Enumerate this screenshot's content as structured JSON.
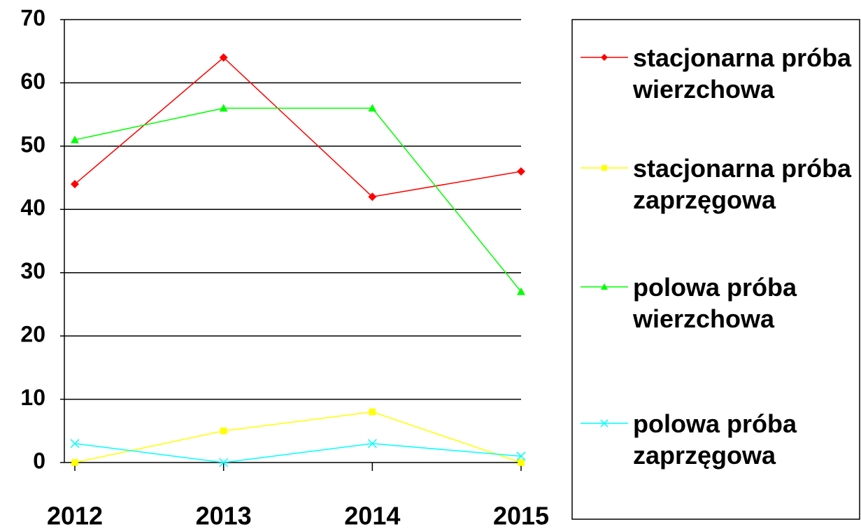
{
  "chart_data": {
    "type": "line",
    "categories": [
      "2012",
      "2013",
      "2014",
      "2015"
    ],
    "series": [
      {
        "name": "stacjonarna próba wierzchowa",
        "color": "#ff0000",
        "marker": "diamond",
        "values": [
          44,
          64,
          42,
          46
        ]
      },
      {
        "name": "stacjonarna próba zaprzęgowa",
        "color": "#ffff00",
        "marker": "square",
        "values": [
          0,
          5,
          8,
          0
        ]
      },
      {
        "name": "polowa próba wierzchowa",
        "color": "#00ff00",
        "marker": "triangle",
        "values": [
          51,
          56,
          56,
          27
        ]
      },
      {
        "name": "polowa próba zaprzęgowa",
        "color": "#00ffff",
        "marker": "x",
        "values": [
          3,
          0,
          3,
          1
        ]
      }
    ],
    "ylim": [
      0,
      70
    ],
    "yticks": [
      0,
      10,
      20,
      30,
      40,
      50,
      60,
      70
    ],
    "grid": true,
    "legend": "right"
  }
}
